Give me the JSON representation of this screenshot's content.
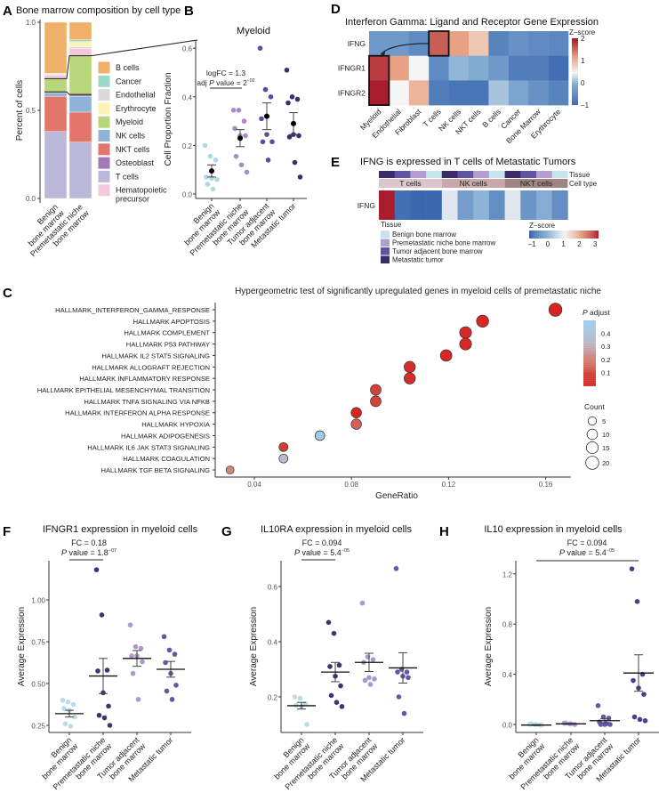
{
  "panel_letters": {
    "A": "A",
    "B": "B",
    "C": "C",
    "D": "D",
    "E": "E",
    "F": "F",
    "G": "G",
    "H": "H"
  },
  "chart_data": [
    {
      "id": "A",
      "type": "bar",
      "stacked": true,
      "title": "Bone marrow composition by cell type",
      "ylabel": "Percent of cells",
      "ylim": [
        0,
        1
      ],
      "yticks": [
        "0.0",
        "0.5",
        "1.0"
      ],
      "categories": [
        [
          "Benign",
          "bone marrow"
        ],
        [
          "Premetastatic niche",
          "bone marrow"
        ]
      ],
      "series": [
        {
          "name": "T cells",
          "color": "#bcb8da",
          "values": [
            0.38,
            0.32
          ]
        },
        {
          "name": "NKT cells",
          "color": "#e3766a",
          "values": [
            0.2,
            0.17
          ]
        },
        {
          "name": "NK cells",
          "color": "#8fb2d6",
          "values": [
            0.02,
            0.09
          ]
        },
        {
          "name": "Osteoblast",
          "color": "#a678b8",
          "values": [
            0.005,
            0.01
          ]
        },
        {
          "name": "Myeloid",
          "color": "#b7d77a",
          "values": [
            0.075,
            0.22
          ]
        },
        {
          "name": "Hematopoietic precursor",
          "color": "#f3c8dc",
          "values": [
            0.02,
            0.04
          ]
        },
        {
          "name": "Endothelial",
          "color": "#d9d9d9",
          "values": [
            0.005,
            0.01
          ]
        },
        {
          "name": "Erythrocyte",
          "color": "#fbf3b4",
          "values": [
            0.005,
            0.03
          ]
        },
        {
          "name": "Cancer",
          "color": "#9ed8c8",
          "values": [
            0.0,
            0.01
          ]
        },
        {
          "name": "B cells",
          "color": "#f0b06a",
          "values": [
            0.29,
            0.1
          ]
        }
      ],
      "legend": [
        {
          "label": "B cells",
          "color": "#f0b06a"
        },
        {
          "label": "Cancer",
          "color": "#9ed8c8"
        },
        {
          "label": "Endothelial",
          "color": "#d9d9d9"
        },
        {
          "label": "Erythrocyte",
          "color": "#fbf3b4"
        },
        {
          "label": "Myeloid",
          "color": "#b7d77a"
        },
        {
          "label": "NK cells",
          "color": "#8fb2d6"
        },
        {
          "label": "NKT cells",
          "color": "#e3766a"
        },
        {
          "label": "Osteoblast",
          "color": "#a678b8"
        },
        {
          "label": "T cells",
          "color": "#bcb8da"
        },
        {
          "label": "Hematopoietic precursor",
          "color": "#f3c8dc"
        }
      ],
      "legend_placement": "right"
    },
    {
      "id": "B",
      "type": "scatter",
      "title": "Myeloid",
      "ylabel": "Cell Proportion Fraction",
      "ylim": [
        0,
        0.6
      ],
      "yticks": [
        "0.0",
        "0.2",
        "0.4",
        "0.6"
      ],
      "categories": [
        [
          "Benign",
          "bone marrow"
        ],
        [
          "Premetastatic niche",
          "bone marrow"
        ],
        [
          "Tumor adjacent",
          "bone marrow"
        ],
        [
          "Metastatic tumor"
        ]
      ],
      "colors": [
        "#add8e6",
        "#a58cc8",
        "#5a4d9c",
        "#3b2d6e"
      ],
      "groups": [
        {
          "points": [
            0.2,
            0.155,
            0.14,
            0.07,
            0.065,
            0.06,
            0.04,
            0.02
          ],
          "mean": 0.095,
          "se": 0.025
        },
        {
          "points": [
            0.345,
            0.345,
            0.3,
            0.27,
            0.24,
            0.24,
            0.155,
            0.12,
            0.09
          ],
          "mean": 0.23,
          "se": 0.035
        },
        {
          "points": [
            0.6,
            0.43,
            0.4,
            0.31,
            0.245,
            0.215,
            0.215,
            0.14
          ],
          "mean": 0.32,
          "se": 0.055
        },
        {
          "points": [
            0.51,
            0.4,
            0.39,
            0.375,
            0.245,
            0.24,
            0.235,
            0.13,
            0.07
          ],
          "mean": 0.29,
          "se": 0.045
        }
      ],
      "annotation": {
        "line1": "logFC = 1.3",
        "prefix": "adj ",
        "p": "P",
        "suffix": " value = 2",
        "sup": "−02"
      }
    },
    {
      "id": "C",
      "type": "scatter",
      "title": "Hypergeometric test of significantly upregulated genes in myeloid cells of premetastatic niche",
      "xlabel": "GeneRatio",
      "xticks": [
        "0.04",
        "0.08",
        "0.12",
        "0.16"
      ],
      "rows": [
        {
          "term": "HALLMARK_INTERFERON_GAMMA_RESPONSE",
          "gene_ratio": 0.164,
          "count": 20,
          "p_adjust": 0.01
        },
        {
          "term": "HALLMARK APOPTOSIS",
          "gene_ratio": 0.134,
          "count": 16,
          "p_adjust": 0.02
        },
        {
          "term": "HALLMARK COMPLEMENT",
          "gene_ratio": 0.127,
          "count": 15,
          "p_adjust": 0.02
        },
        {
          "term": "HALLMARK P53 PATHWAY",
          "gene_ratio": 0.127,
          "count": 15,
          "p_adjust": 0.02
        },
        {
          "term": "HALLMARK IL2 STAT5 SIGNALING",
          "gene_ratio": 0.119,
          "count": 14,
          "p_adjust": 0.02
        },
        {
          "term": "HALLMARK ALLOGRAFT REJECTION",
          "gene_ratio": 0.104,
          "count": 13,
          "p_adjust": 0.03
        },
        {
          "term": "HALLMARK INFLAMMATORY RESPONSE",
          "gene_ratio": 0.104,
          "count": 13,
          "p_adjust": 0.03
        },
        {
          "term": "HALLMARK EPITHELIAL MESENCHYMAL TRANSITION",
          "gene_ratio": 0.09,
          "count": 11,
          "p_adjust": 0.09
        },
        {
          "term": "HALLMARK TNFA SIGNALING VIA NFKB",
          "gene_ratio": 0.09,
          "count": 11,
          "p_adjust": 0.09
        },
        {
          "term": "HALLMARK INTERFERON ALPHA RESPONSE",
          "gene_ratio": 0.082,
          "count": 10,
          "p_adjust": 0.01
        },
        {
          "term": "HALLMARK HYPOXIA",
          "gene_ratio": 0.082,
          "count": 10,
          "p_adjust": 0.15
        },
        {
          "term": "HALLMARK ADIPOGENESIS",
          "gene_ratio": 0.067,
          "count": 8,
          "p_adjust": 0.47
        },
        {
          "term": "HALLMARK IL6 JAK STAT3 SIGNALING",
          "gene_ratio": 0.052,
          "count": 6,
          "p_adjust": 0.08
        },
        {
          "term": "HALLMARK COAGULATION",
          "gene_ratio": 0.052,
          "count": 6,
          "p_adjust": 0.36
        },
        {
          "term": "HALLMARK TGF BETA SIGNALING",
          "gene_ratio": 0.03,
          "count": 4,
          "p_adjust": 0.22
        }
      ],
      "color_legend": {
        "title_p": "P",
        "title_rest": " adjust",
        "ticks": [
          "0.4",
          "0.3",
          "0.2",
          "0.1"
        ]
      },
      "size_legend": {
        "title": "Count",
        "values": [
          "5",
          "10",
          "15",
          "20"
        ]
      },
      "legend_placement": "right"
    },
    {
      "id": "D",
      "type": "heatmap",
      "title": "Interferon Gamma: Ligand and Receptor Gene Expression",
      "rows": [
        "IFNG",
        "IFNGR1",
        "IFNGR2"
      ],
      "columns": [
        "Myeloid",
        "Endothelial",
        "Fibroblast",
        "T cells",
        "NK cells",
        "NKT cells",
        "B cells",
        "Cancer",
        "Bone Marrow",
        "Erythrocyte"
      ],
      "values": [
        [
          -0.3,
          -0.3,
          -0.5,
          1.6,
          1.2,
          0.9,
          -0.6,
          -0.4,
          -0.5,
          -0.55
        ],
        [
          1.8,
          1.2,
          0.5,
          -0.5,
          0.05,
          -0.05,
          -0.3,
          -0.7,
          -0.7,
          -0.9
        ],
        [
          2.0,
          0.5,
          1.05,
          -0.7,
          -0.8,
          -0.8,
          0.15,
          -0.15,
          -0.4,
          -0.6
        ]
      ],
      "highlight": [
        {
          "row": "IFNG",
          "column": "T cells"
        },
        {
          "row": "IFNGR1-IFNGR2",
          "column": "Myeloid"
        }
      ],
      "colorbar": {
        "title": "Z−score",
        "ticks": [
          "2",
          "1",
          "0",
          "−1"
        ],
        "range": [
          -1,
          2
        ]
      }
    },
    {
      "id": "E",
      "type": "heatmap",
      "title": "IFNG is expressed in T cells of Metastatic Tumors",
      "row": "IFNG",
      "annotation_labels": {
        "tissue": "Tissue",
        "cell_type": "Cell type"
      },
      "cell_types": [
        {
          "label": "T cells",
          "color": "#dcc5cd"
        },
        {
          "label": "NK cells",
          "color": "#c9a8ab"
        },
        {
          "label": "NKT cells",
          "color": "#a08584"
        }
      ],
      "tissue_order": [
        3,
        2,
        1,
        0
      ],
      "values": [
        3.0,
        -0.9,
        -1.0,
        -1.0,
        0.8,
        -0.3,
        0.0,
        -0.5,
        0.8,
        -0.4,
        -0.1,
        -0.5
      ],
      "tissue_legend": {
        "title": "Tissue",
        "items": [
          {
            "label": "Benign bone marrow",
            "color": "#c7e3ec"
          },
          {
            "label": "Premetastatic niche bone marrow",
            "color": "#b39fcf"
          },
          {
            "label": "Tumor adjacent bone marrow",
            "color": "#5e54a0"
          },
          {
            "label": "Metastatic tumor",
            "color": "#3a2c66"
          }
        ]
      },
      "colorbar": {
        "title": "Z−score",
        "ticks": [
          "−1",
          "0",
          "1",
          "2",
          "3"
        ],
        "range": [
          -1,
          3
        ]
      }
    },
    {
      "id": "F",
      "type": "scatter",
      "title": "IFNGR1 expression in myeloid cells",
      "ylabel": "Average Expression",
      "ylim": [
        0.2,
        1.2
      ],
      "yticks": [
        "0.25",
        "0.50",
        "0.75",
        "1.00"
      ],
      "categories": [
        [
          "Benign",
          "bone marrow"
        ],
        [
          "Premetastatic niche",
          "bone marrow"
        ],
        [
          "Tumor adjacent",
          "bone marrow"
        ],
        [
          "Metastatic tumor"
        ]
      ],
      "colors": [
        "#b9dce8",
        "#3f3470",
        "#ae96cf",
        "#6656a8"
      ],
      "groups": [
        {
          "points": [
            0.4,
            0.39,
            0.375,
            0.35,
            0.34,
            0.3,
            0.26,
            0.245
          ],
          "mean": 0.32,
          "se": 0.02
        },
        {
          "points": [
            1.18,
            0.91,
            0.58,
            0.575,
            0.445,
            0.365,
            0.31,
            0.295,
            0.25
          ],
          "mean": 0.545,
          "se": 0.105
        },
        {
          "points": [
            0.85,
            0.72,
            0.71,
            0.665,
            0.665,
            0.63,
            0.56,
            0.405
          ],
          "mean": 0.65,
          "se": 0.047
        },
        {
          "points": [
            0.78,
            0.7,
            0.675,
            0.625,
            0.56,
            0.49,
            0.455,
            0.405
          ],
          "mean": 0.585,
          "se": 0.047
        }
      ],
      "annotation": {
        "line1": "FC =  0.18",
        "prefix": "",
        "p": "P",
        "suffix": " value = 1.8",
        "sup": "−07"
      }
    },
    {
      "id": "G",
      "type": "scatter",
      "title": "IL10RA expression in myeloid cells",
      "ylabel": "Average Expression",
      "ylim": [
        0.08,
        0.7
      ],
      "yticks": [
        "0.2",
        "0.4",
        "0.6"
      ],
      "categories": [
        [
          "Benign",
          "bone marrow"
        ],
        [
          "Premetastatic niche",
          "bone marrow"
        ],
        [
          "Tumor adjacent",
          "bone marrow"
        ],
        [
          "Metastatic tumor"
        ]
      ],
      "colors": [
        "#b9dce8",
        "#3f3470",
        "#ae96cf",
        "#6656a8"
      ],
      "groups": [
        {
          "points": [
            0.2,
            0.195,
            0.175,
            0.17,
            0.165,
            0.1
          ],
          "mean": 0.168,
          "se": 0.012
        },
        {
          "points": [
            0.47,
            0.43,
            0.315,
            0.31,
            0.275,
            0.24,
            0.205,
            0.18,
            0.165
          ],
          "mean": 0.29,
          "se": 0.035
        },
        {
          "points": [
            0.54,
            0.345,
            0.335,
            0.325,
            0.27,
            0.265,
            0.26,
            0.245
          ],
          "mean": 0.325,
          "se": 0.033
        },
        {
          "points": [
            0.665,
            0.3,
            0.29,
            0.29,
            0.275,
            0.27,
            0.2,
            0.14
          ],
          "mean": 0.305,
          "se": 0.055
        }
      ],
      "annotation": {
        "line1": "FC =  0.094",
        "prefix": "",
        "p": "P",
        "suffix": " value = 5.4",
        "sup": "−05"
      }
    },
    {
      "id": "H",
      "type": "scatter",
      "title": "IL10 expression in myeloid cells",
      "ylabel": "Average Expression",
      "ylim": [
        -0.05,
        1.3
      ],
      "yticks": [
        "0.0",
        "0.4",
        "0.8",
        "1.2"
      ],
      "categories": [
        [
          "Benign",
          "bone marrow"
        ],
        [
          "Premetastatic niche",
          "bone marrow"
        ],
        [
          "Tumor adjacent",
          "bone marrow"
        ],
        [
          "Metastatic tumor"
        ]
      ],
      "colors": [
        "#b9dce8",
        "#ae96cf",
        "#6656a8",
        "#4b3f8c"
      ],
      "groups": [
        {
          "points": [
            0.0,
            0.0,
            -0.005,
            0.005,
            0.0,
            -0.005
          ],
          "mean": -0.005,
          "se": 0.003
        },
        {
          "points": [
            0.01,
            0.005,
            0.0,
            0.01,
            0.005
          ],
          "mean": 0.005,
          "se": 0.002
        },
        {
          "points": [
            0.15,
            0.06,
            0.05,
            0.02,
            0.0,
            0.0,
            0.0,
            0.005
          ],
          "mean": 0.03,
          "se": 0.015
        },
        {
          "points": [
            1.24,
            0.98,
            0.4,
            0.35,
            0.29,
            0.24,
            0.06,
            0.04,
            0.03
          ],
          "mean": 0.41,
          "se": 0.145
        }
      ],
      "annotation": {
        "line1": "FC =  0.094",
        "prefix": "",
        "p": "P",
        "suffix": " value = 5.4",
        "sup": "−05"
      }
    }
  ]
}
